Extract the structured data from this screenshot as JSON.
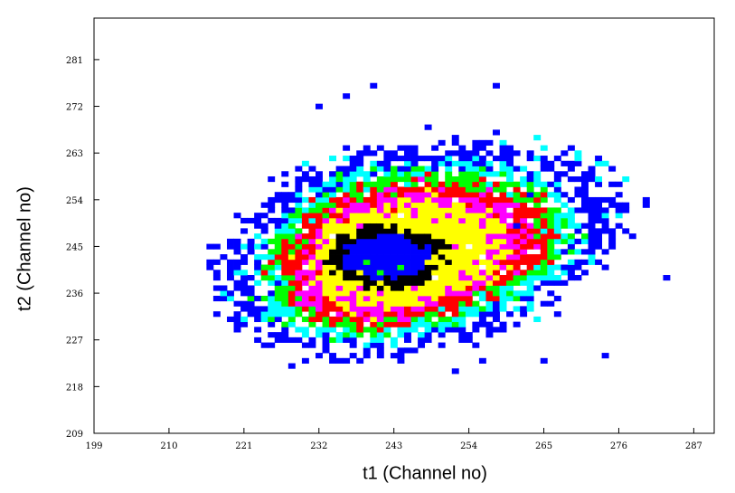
{
  "chart_data": {
    "type": "heatmap",
    "title": "",
    "xlabel": "t1 (Channel no)",
    "ylabel": "t2 (Channel no)",
    "xlim": [
      199,
      290
    ],
    "ylim": [
      209,
      289
    ],
    "xticks": [
      199,
      210,
      221,
      232,
      243,
      254,
      265,
      276,
      287
    ],
    "yticks": [
      209,
      218,
      227,
      236,
      245,
      254,
      263,
      272,
      281
    ],
    "grid": false,
    "cell_size": 1,
    "color_levels": [
      {
        "name": "blue",
        "color": "#0000ff"
      },
      {
        "name": "cyan",
        "color": "#00ffff"
      },
      {
        "name": "green",
        "color": "#00ff00"
      },
      {
        "name": "red",
        "color": "#ff0000"
      },
      {
        "name": "magenta",
        "color": "#ff00ff"
      },
      {
        "name": "yellow",
        "color": "#ffff00"
      },
      {
        "name": "black",
        "color": "#000000"
      }
    ],
    "distribution": {
      "center": [
        243,
        242
      ],
      "core_center": [
        242,
        243
      ],
      "extent_x": [
        216,
        282
      ],
      "extent_y": [
        221,
        277
      ],
      "color_rings": [
        {
          "level": "blue",
          "max_radius": 0.62
        },
        {
          "level": "black",
          "max_radius": 1.05
        },
        {
          "level": "yellow",
          "max_radius": 1.45
        },
        {
          "level": "magenta",
          "max_radius": 1.75
        },
        {
          "level": "red",
          "max_radius": 2.0
        },
        {
          "level": "green",
          "max_radius": 2.25
        },
        {
          "level": "cyan",
          "max_radius": 2.5
        },
        {
          "level": "blue",
          "max_radius": 3.2
        }
      ],
      "green_spots_in_core": [
        [
          239,
          242
        ],
        [
          241,
          240
        ],
        [
          244,
          241
        ],
        [
          236,
          244
        ],
        [
          242,
          238
        ],
        [
          246,
          239
        ]
      ],
      "outlier_points": [
        [
          240,
          276
        ],
        [
          258,
          276
        ],
        [
          236,
          274
        ],
        [
          248,
          268
        ],
        [
          259,
          264
        ],
        [
          232,
          272
        ],
        [
          280,
          254
        ],
        [
          216,
          245
        ],
        [
          261,
          249
        ],
        [
          272,
          245
        ],
        [
          283,
          239
        ],
        [
          267,
          232
        ],
        [
          274,
          224
        ],
        [
          252,
          221
        ],
        [
          256,
          223
        ],
        [
          265,
          223
        ],
        [
          228,
          222
        ],
        [
          245,
          225
        ],
        [
          238,
          223
        ],
        [
          221,
          242
        ]
      ]
    }
  }
}
